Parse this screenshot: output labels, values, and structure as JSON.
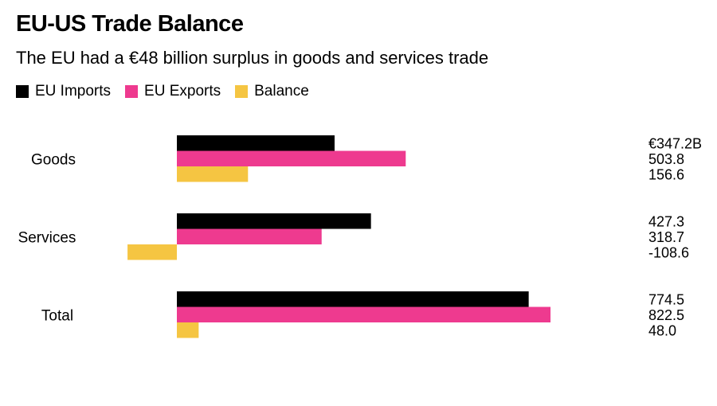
{
  "chart_data": {
    "type": "bar",
    "orientation": "horizontal",
    "title": "EU-US Trade Balance",
    "subtitle": "The EU had a €48 billion surplus in goods and services trade",
    "categories": [
      "Goods",
      "Services",
      "Total"
    ],
    "series": [
      {
        "name": "EU Imports",
        "color": "#000000",
        "values": [
          347.2,
          427.3,
          774.5
        ]
      },
      {
        "name": "EU Exports",
        "color": "#ee3a8f",
        "values": [
          503.8,
          318.7,
          822.5
        ]
      },
      {
        "name": "Balance",
        "color": "#f5c542",
        "values": [
          156.6,
          -108.6,
          48.0
        ]
      }
    ],
    "value_labels": [
      [
        "€347.2B",
        "503.8",
        "156.6"
      ],
      [
        "427.3",
        "318.7",
        "-108.6"
      ],
      [
        "774.5",
        "822.5",
        "48.0"
      ]
    ],
    "xlim": [
      -108.6,
      822.5
    ],
    "grid": false,
    "legend_position": "top-left"
  }
}
